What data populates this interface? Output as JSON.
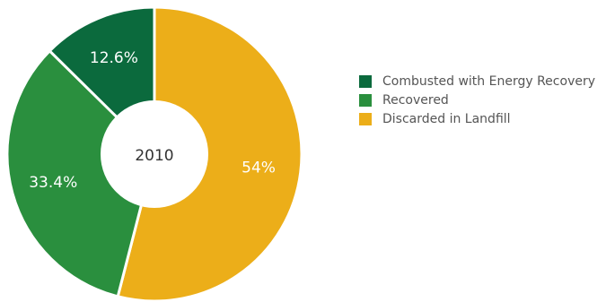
{
  "chart_data": {
    "type": "pie",
    "variant": "donut",
    "center_label": "2010",
    "categories": [
      "Combusted with Energy Recovery",
      "Recovered",
      "Discarded in Landfill"
    ],
    "values": [
      12.6,
      33.4,
      54
    ],
    "value_labels": [
      "12.6%",
      "33.4%",
      "54%"
    ],
    "unit": "%",
    "colors": [
      "#0b6a3d",
      "#2a8f3e",
      "#ecae19"
    ],
    "start": "top, clockwise from Discarded in Landfill",
    "legend": {
      "placement": "right",
      "items": [
        {
          "label": "Combusted with Energy Recovery",
          "color": "#0b6a3d"
        },
        {
          "label": "Recovered",
          "color": "#2a8f3e"
        },
        {
          "label": "Discarded in Landfill",
          "color": "#ecae19"
        }
      ]
    }
  }
}
